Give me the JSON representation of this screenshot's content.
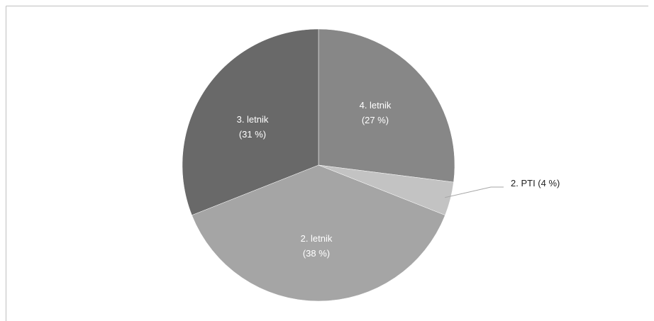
{
  "chart_data": {
    "type": "pie",
    "title": "",
    "categories": [
      "4. letnik",
      "2. PTI",
      "2. letnik",
      "3. letnik"
    ],
    "values": [
      27,
      4,
      38,
      31
    ],
    "labels": [
      {
        "name": "4. letnik",
        "pct": "(27 %)"
      },
      {
        "name": "2. PTI",
        "pct": "(4 %)"
      },
      {
        "name": "2. letnik",
        "pct": "(38 %)"
      },
      {
        "name": "3. letnik",
        "pct": "(31 %)"
      }
    ],
    "callout_text": "2. PTI (4 %)",
    "colors": [
      "#878787",
      "#c3c3c3",
      "#a5a5a5",
      "#696969"
    ],
    "legend": "none",
    "label_style": "category-and-percent"
  }
}
